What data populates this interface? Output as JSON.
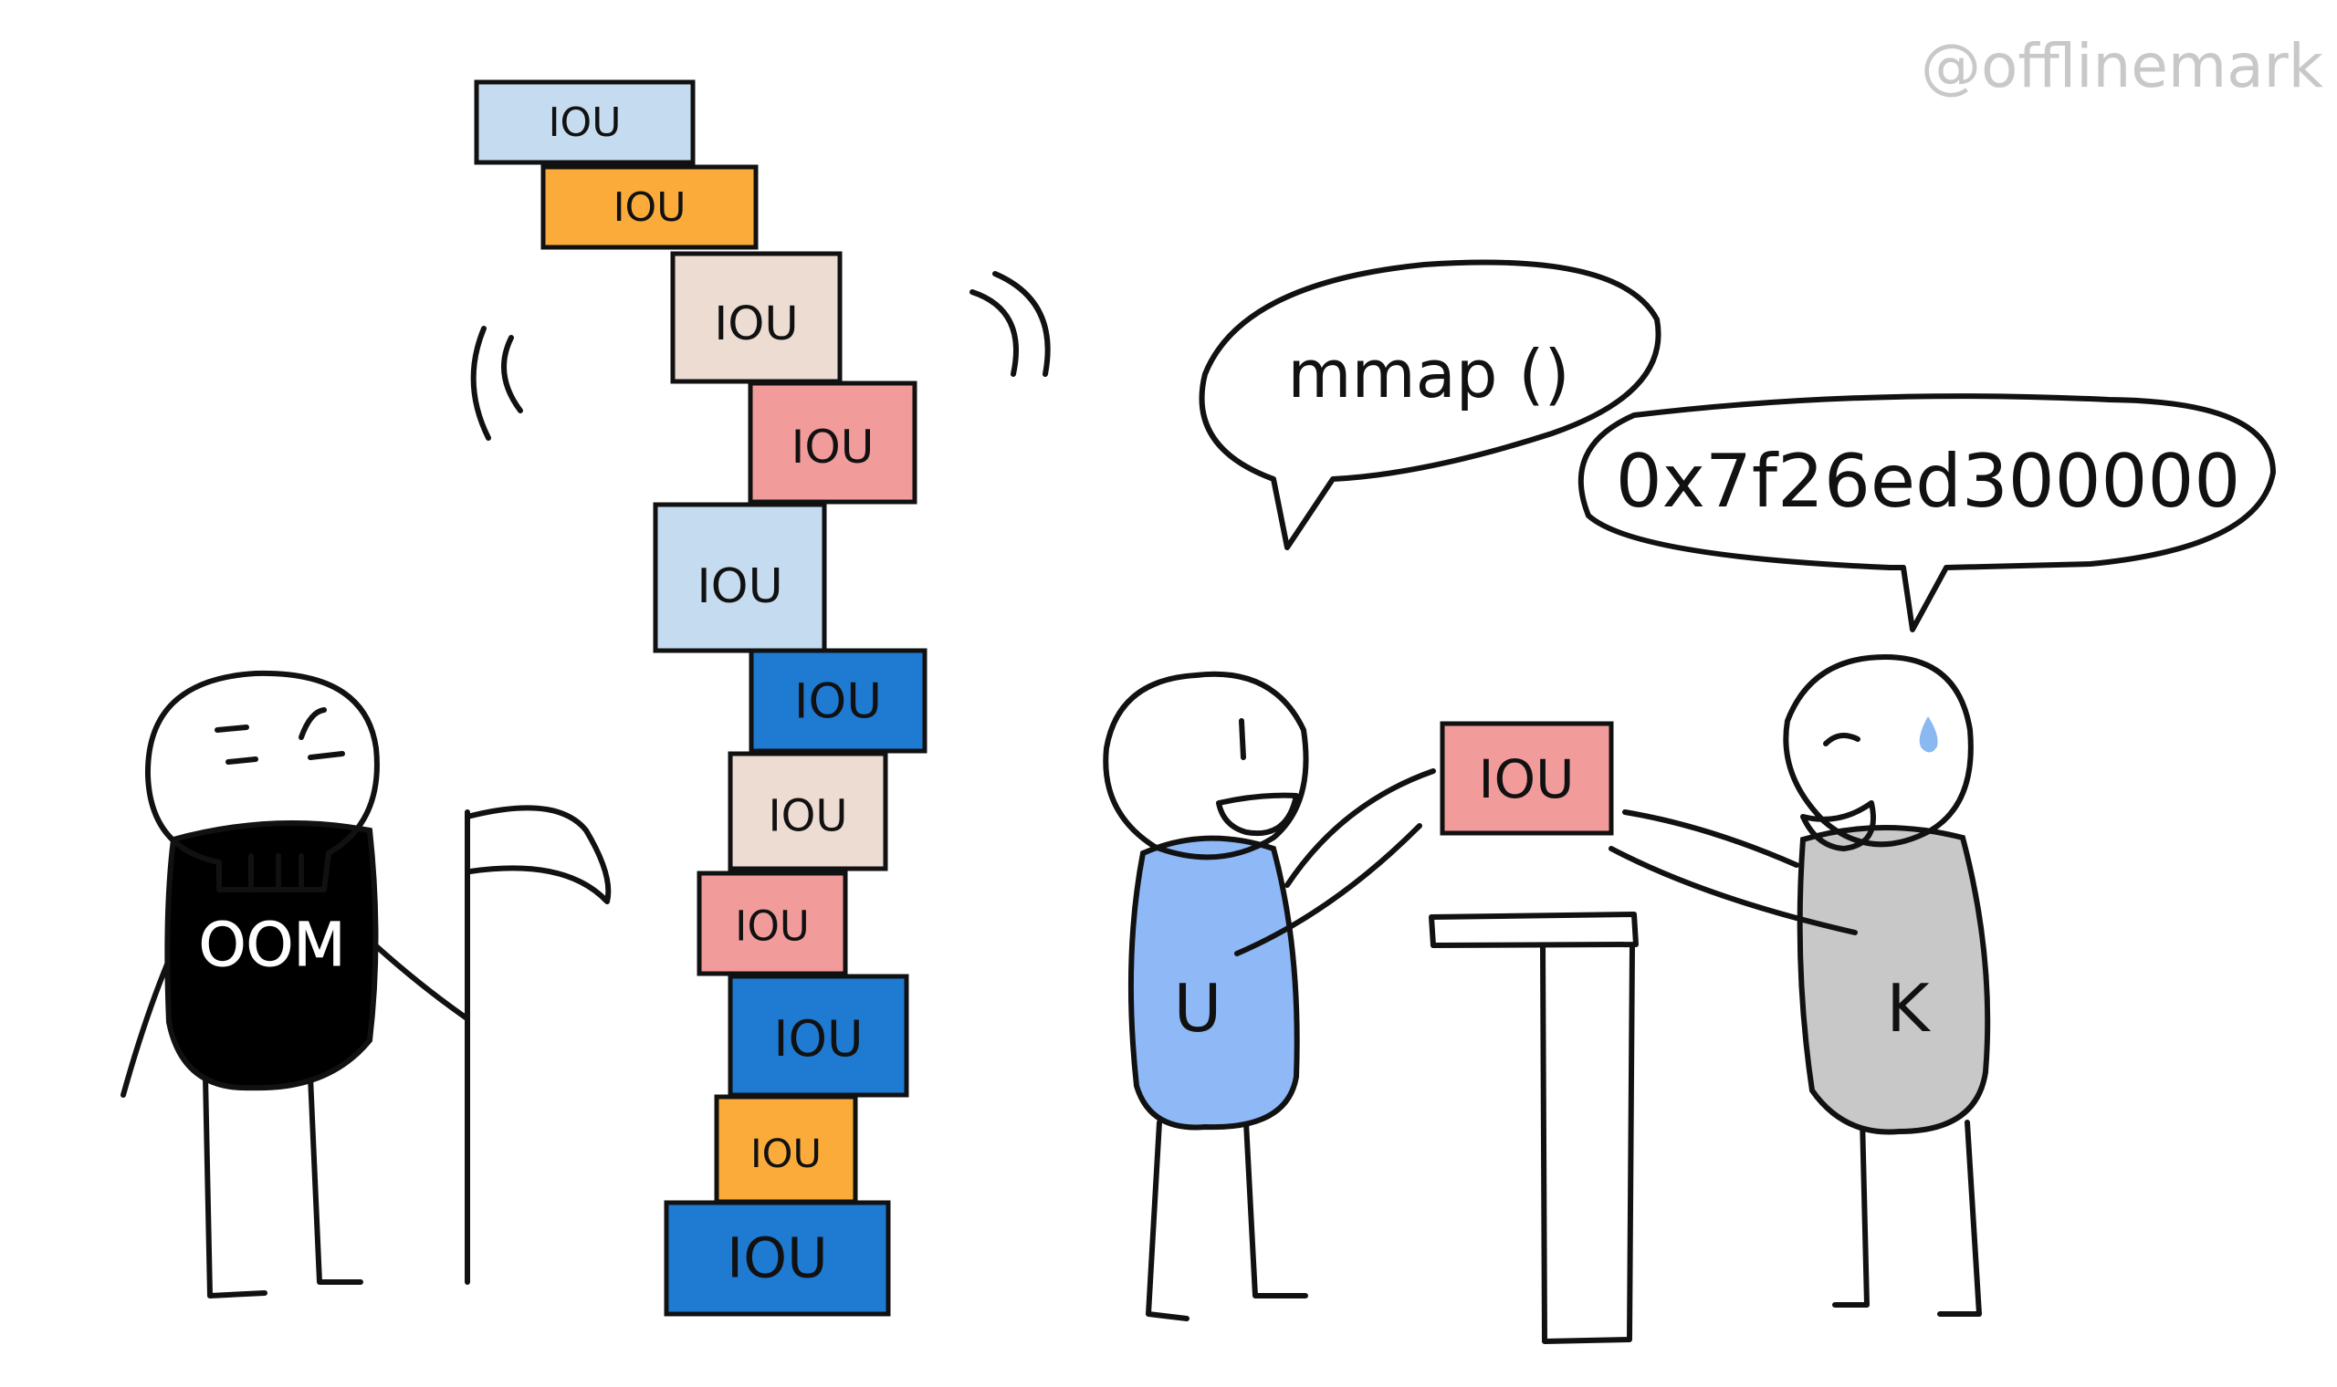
{
  "watermark": "@offlinemark",
  "stack": {
    "label": "IOU",
    "colors": [
      "#c5dbef",
      "#fbab3a",
      "#eddcd2",
      "#f29b9b",
      "#c5dbef",
      "#1f7ad2",
      "#eddcd2",
      "#f29b9b",
      "#1f7ad2",
      "#fbab3a",
      "#1f7ad2"
    ]
  },
  "oom": {
    "shirt_text": "OOM",
    "shirt_color": "#000000"
  },
  "user": {
    "speech": "mmap ()",
    "shirt_letter": "U",
    "shirt_color": "#8fb8f6"
  },
  "kernel": {
    "speech": "0x7f26ed300000",
    "shirt_letter": "K",
    "shirt_color": "#c8c8c8"
  },
  "handoff": {
    "label": "IOU",
    "color": "#f29b9b"
  },
  "sweat_color": "#8ab8f0"
}
